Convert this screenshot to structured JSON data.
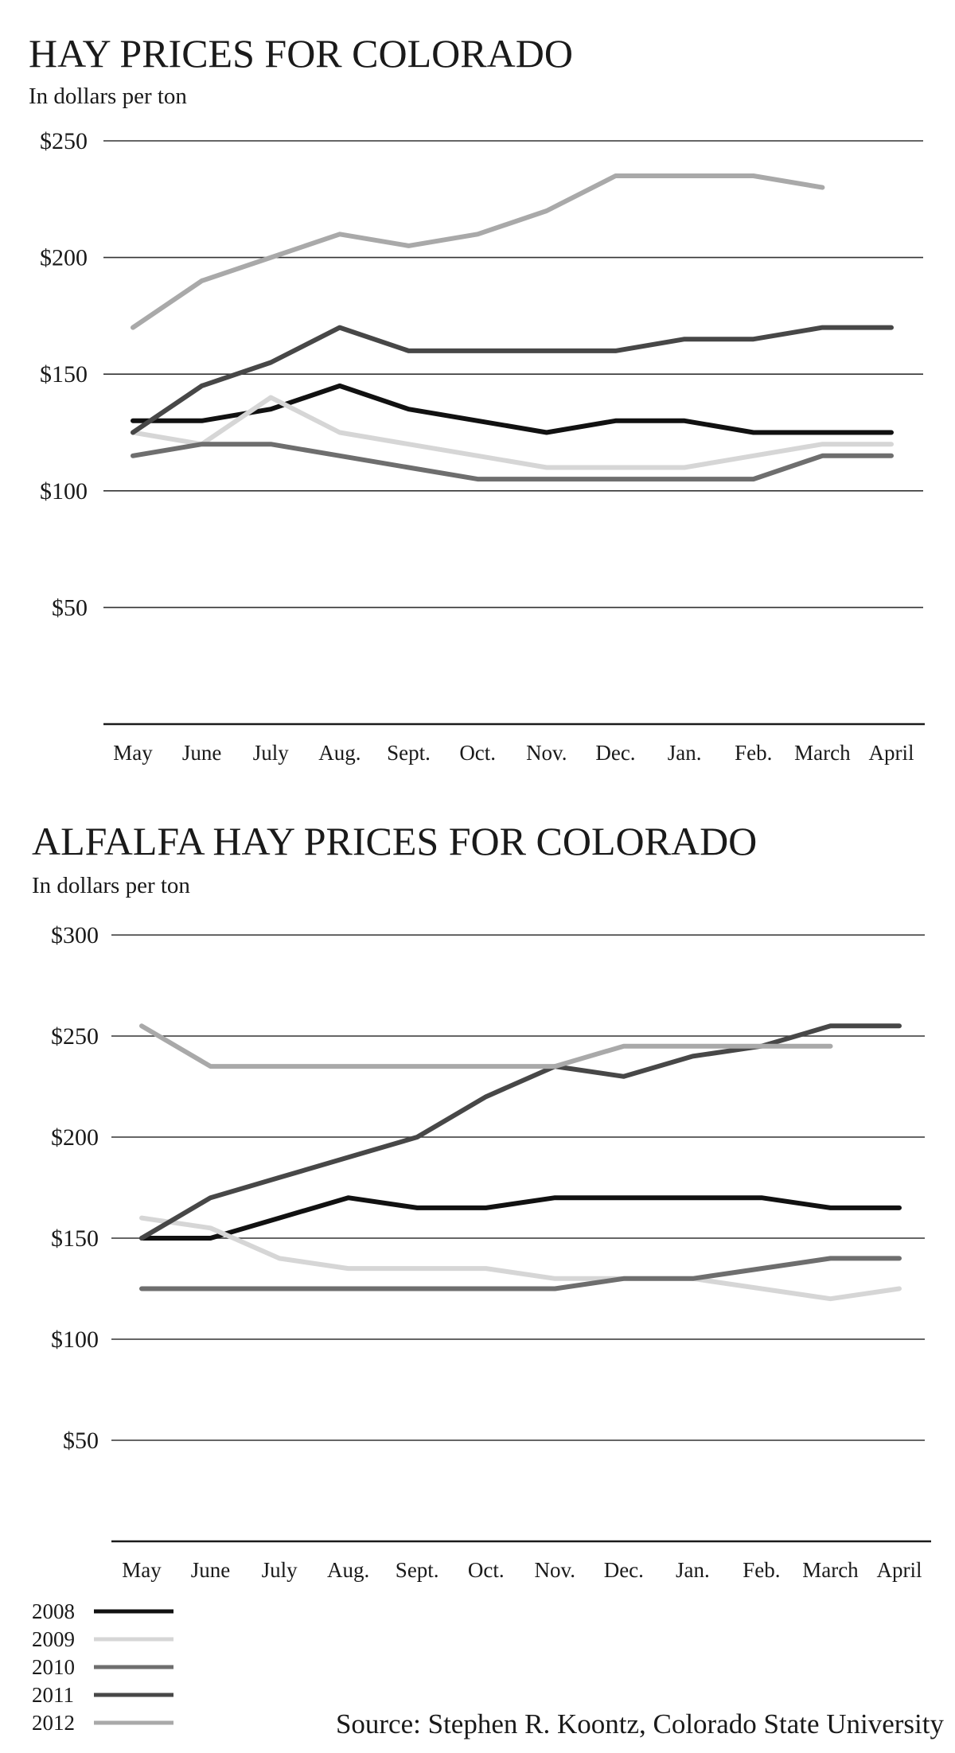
{
  "chart_data": [
    {
      "type": "line",
      "title": "HAY PRICES FOR COLORADO",
      "subtitle": "In dollars per ton",
      "categories": [
        "May",
        "June",
        "July",
        "Aug.",
        "Sept.",
        "Oct.",
        "Nov.",
        "Dec.",
        "Jan.",
        "Feb.",
        "March",
        "April"
      ],
      "y_ticks": [
        {
          "value": 50,
          "label": "$50"
        },
        {
          "value": 100,
          "label": "$100"
        },
        {
          "value": 150,
          "label": "$150"
        },
        {
          "value": 200,
          "label": "$200"
        },
        {
          "value": 250,
          "label": "$250"
        }
      ],
      "ylim": [
        0,
        250
      ],
      "grid": true,
      "series": [
        {
          "name": "2008",
          "color": "#111111",
          "values": [
            130,
            130,
            135,
            145,
            135,
            130,
            125,
            130,
            130,
            125,
            125,
            125
          ]
        },
        {
          "name": "2009",
          "color": "#d6d6d6",
          "values": [
            125,
            120,
            140,
            125,
            120,
            115,
            110,
            110,
            110,
            115,
            120,
            120
          ]
        },
        {
          "name": "2010",
          "color": "#6e6e6e",
          "values": [
            115,
            120,
            120,
            115,
            110,
            105,
            105,
            105,
            105,
            105,
            115,
            115
          ]
        },
        {
          "name": "2011",
          "color": "#474747",
          "values": [
            125,
            145,
            155,
            170,
            160,
            160,
            160,
            160,
            165,
            165,
            170,
            170
          ]
        },
        {
          "name": "2012",
          "color": "#a9a9a9",
          "values": [
            170,
            190,
            200,
            210,
            205,
            210,
            220,
            235,
            235,
            235,
            230,
            null
          ]
        }
      ]
    },
    {
      "type": "line",
      "title": "ALFALFA HAY PRICES FOR COLORADO",
      "subtitle": "In dollars per ton",
      "categories": [
        "May",
        "June",
        "July",
        "Aug.",
        "Sept.",
        "Oct.",
        "Nov.",
        "Dec.",
        "Jan.",
        "Feb.",
        "March",
        "April"
      ],
      "y_ticks": [
        {
          "value": 50,
          "label": "$50"
        },
        {
          "value": 100,
          "label": "$100"
        },
        {
          "value": 150,
          "label": "$150"
        },
        {
          "value": 200,
          "label": "$200"
        },
        {
          "value": 250,
          "label": "$250"
        },
        {
          "value": 300,
          "label": "$300"
        }
      ],
      "ylim": [
        0,
        300
      ],
      "grid": true,
      "series": [
        {
          "name": "2008",
          "color": "#111111",
          "values": [
            150,
            150,
            160,
            170,
            165,
            165,
            170,
            170,
            170,
            170,
            165,
            165
          ]
        },
        {
          "name": "2009",
          "color": "#d6d6d6",
          "values": [
            160,
            155,
            140,
            135,
            135,
            135,
            130,
            130,
            130,
            125,
            120,
            125
          ]
        },
        {
          "name": "2010",
          "color": "#6e6e6e",
          "values": [
            125,
            125,
            125,
            125,
            125,
            125,
            125,
            130,
            130,
            135,
            140,
            140
          ]
        },
        {
          "name": "2011",
          "color": "#474747",
          "values": [
            150,
            170,
            180,
            190,
            200,
            220,
            235,
            230,
            240,
            245,
            255,
            255
          ]
        },
        {
          "name": "2012",
          "color": "#a9a9a9",
          "values": [
            255,
            235,
            235,
            235,
            235,
            235,
            235,
            245,
            245,
            245,
            245,
            null
          ]
        }
      ]
    }
  ],
  "legend": {
    "placement": "bottom-left",
    "items": [
      {
        "label": "2008",
        "color": "#111111"
      },
      {
        "label": "2009",
        "color": "#d6d6d6"
      },
      {
        "label": "2010",
        "color": "#6e6e6e"
      },
      {
        "label": "2011",
        "color": "#474747"
      },
      {
        "label": "2012",
        "color": "#a9a9a9"
      }
    ]
  },
  "source": "Source: Stephen R. Koontz, Colorado State University"
}
